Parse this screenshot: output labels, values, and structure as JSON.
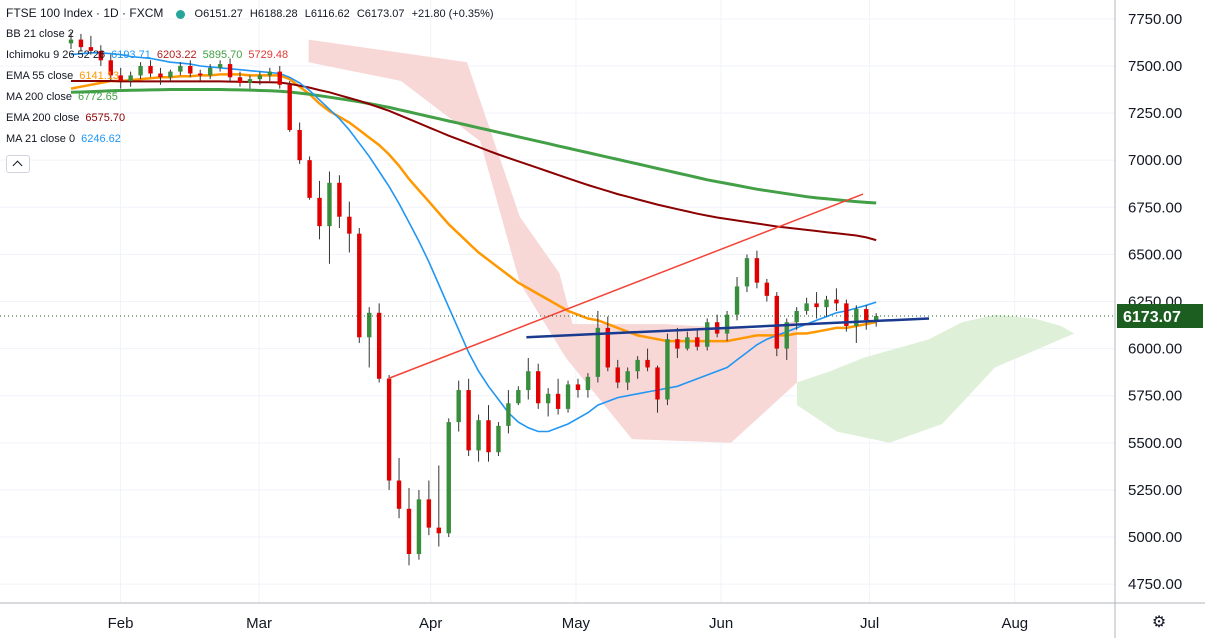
{
  "header": {
    "title": "FTSE 100 Index · 1D · FXCM",
    "ohlc": {
      "open_label": "O",
      "open": "6151.27",
      "high_label": "H",
      "high": "6188.28",
      "low_label": "L",
      "low": "6116.62",
      "close_label": "C",
      "close": "6173.07",
      "change": "+21.80 (+0.35%)"
    }
  },
  "indicators": [
    {
      "name": "BB 21 close 2",
      "values": [],
      "colors": []
    },
    {
      "name": "Ichimoku 9 26 52 26",
      "values": [
        "6193.71",
        "6203.22",
        "5895.70",
        "5729.48"
      ],
      "colors": [
        "#2196f3",
        "#b71c1c",
        "#43a047",
        "#e53935"
      ]
    },
    {
      "name": "EMA 55 close",
      "values": [
        "6141.13"
      ],
      "colors": [
        "#ff9800"
      ]
    },
    {
      "name": "MA 200 close",
      "values": [
        "6772.65"
      ],
      "colors": [
        "#43a047"
      ]
    },
    {
      "name": "EMA 200 close",
      "values": [
        "6575.70"
      ],
      "colors": [
        "#8b0000"
      ]
    },
    {
      "name": "MA 21 close 0",
      "values": [
        "6246.62"
      ],
      "colors": [
        "#2196f3"
      ]
    }
  ],
  "colors": {
    "up": "#388e3c",
    "down": "#e00000",
    "ema55": "#ff9800",
    "ma200": "#43a047",
    "ema200": "#8b0000",
    "ma21": "#2196f3",
    "bb": "#90caf9",
    "kumo_bear": "#f8d7d7",
    "kumo_bull": "#dff0d8",
    "trend_support": "#1a3a8f",
    "trend_channel": "#f44336",
    "price_label_bg": "#1b5e20"
  },
  "chart_data": {
    "type": "candlestick",
    "title": "FTSE 100 Index · 1D · FXCM",
    "ylim": [
      4650,
      7850
    ],
    "y_ticks": [
      "7750.00",
      "7500.00",
      "7250.00",
      "7000.00",
      "6750.00",
      "6500.00",
      "6250.00",
      "6000.00",
      "5750.00",
      "5500.00",
      "5250.00",
      "5000.00",
      "4750.00"
    ],
    "x_ticks": [
      "Feb",
      "Mar",
      "Apr",
      "May",
      "Jun",
      "Jul",
      "Aug"
    ],
    "last_price": "6173.07",
    "candles": [
      [
        7620,
        7680,
        7590,
        7640
      ],
      [
        7640,
        7670,
        7580,
        7600
      ],
      [
        7600,
        7660,
        7560,
        7580
      ],
      [
        7580,
        7610,
        7500,
        7530
      ],
      [
        7530,
        7560,
        7420,
        7450
      ],
      [
        7450,
        7490,
        7380,
        7420
      ],
      [
        7420,
        7470,
        7390,
        7450
      ],
      [
        7450,
        7520,
        7430,
        7500
      ],
      [
        7500,
        7530,
        7440,
        7460
      ],
      [
        7460,
        7490,
        7400,
        7440
      ],
      [
        7440,
        7480,
        7420,
        7470
      ],
      [
        7470,
        7520,
        7450,
        7500
      ],
      [
        7500,
        7530,
        7440,
        7460
      ],
      [
        7460,
        7480,
        7420,
        7450
      ],
      [
        7450,
        7510,
        7430,
        7490
      ],
      [
        7490,
        7530,
        7470,
        7510
      ],
      [
        7510,
        7540,
        7420,
        7440
      ],
      [
        7440,
        7470,
        7390,
        7410
      ],
      [
        7410,
        7450,
        7380,
        7430
      ],
      [
        7430,
        7470,
        7400,
        7450
      ],
      [
        7450,
        7490,
        7420,
        7470
      ],
      [
        7470,
        7500,
        7380,
        7400
      ],
      [
        7400,
        7420,
        7150,
        7160
      ],
      [
        7160,
        7200,
        6980,
        7000
      ],
      [
        7000,
        7020,
        6790,
        6800
      ],
      [
        6800,
        6890,
        6580,
        6650
      ],
      [
        6650,
        6940,
        6450,
        6880
      ],
      [
        6880,
        6920,
        6640,
        6700
      ],
      [
        6700,
        6780,
        6510,
        6610
      ],
      [
        6610,
        6640,
        6030,
        6060
      ],
      [
        6060,
        6220,
        5900,
        6190
      ],
      [
        6190,
        6240,
        5820,
        5840
      ],
      [
        5840,
        5860,
        5250,
        5300
      ],
      [
        5300,
        5420,
        5100,
        5150
      ],
      [
        5150,
        5260,
        4850,
        4910
      ],
      [
        4910,
        5250,
        4880,
        5200
      ],
      [
        5200,
        5300,
        5010,
        5050
      ],
      [
        5050,
        5380,
        4950,
        5020
      ],
      [
        5020,
        5630,
        5000,
        5610
      ],
      [
        5610,
        5830,
        5560,
        5780
      ],
      [
        5780,
        5840,
        5430,
        5460
      ],
      [
        5460,
        5650,
        5400,
        5620
      ],
      [
        5620,
        5700,
        5400,
        5450
      ],
      [
        5450,
        5610,
        5430,
        5590
      ],
      [
        5590,
        5780,
        5550,
        5710
      ],
      [
        5710,
        5800,
        5700,
        5780
      ],
      [
        5780,
        5950,
        5730,
        5880
      ],
      [
        5880,
        5920,
        5680,
        5710
      ],
      [
        5710,
        5790,
        5640,
        5760
      ],
      [
        5760,
        5840,
        5650,
        5680
      ],
      [
        5680,
        5830,
        5660,
        5810
      ],
      [
        5810,
        5840,
        5740,
        5780
      ],
      [
        5780,
        5870,
        5740,
        5850
      ],
      [
        5850,
        6200,
        5820,
        6110
      ],
      [
        6110,
        6170,
        5880,
        5900
      ],
      [
        5900,
        5940,
        5790,
        5820
      ],
      [
        5820,
        5900,
        5780,
        5880
      ],
      [
        5880,
        5960,
        5840,
        5940
      ],
      [
        5940,
        6000,
        5880,
        5900
      ],
      [
        5900,
        5910,
        5660,
        5730
      ],
      [
        5730,
        6080,
        5700,
        6050
      ],
      [
        6050,
        6110,
        5950,
        6000
      ],
      [
        6000,
        6090,
        5990,
        6060
      ],
      [
        6060,
        6100,
        5990,
        6010
      ],
      [
        6010,
        6160,
        5990,
        6140
      ],
      [
        6140,
        6180,
        6060,
        6080
      ],
      [
        6080,
        6200,
        6040,
        6180
      ],
      [
        6180,
        6380,
        6150,
        6330
      ],
      [
        6330,
        6500,
        6300,
        6480
      ],
      [
        6480,
        6520,
        6320,
        6350
      ],
      [
        6350,
        6370,
        6250,
        6280
      ],
      [
        6280,
        6300,
        5960,
        6000
      ],
      [
        6000,
        6160,
        5940,
        6140
      ],
      [
        6140,
        6220,
        6100,
        6200
      ],
      [
        6200,
        6270,
        6180,
        6240
      ],
      [
        6240,
        6300,
        6160,
        6220
      ],
      [
        6220,
        6280,
        6170,
        6260
      ],
      [
        6260,
        6320,
        6200,
        6240
      ],
      [
        6240,
        6260,
        6090,
        6120
      ],
      [
        6120,
        6230,
        6030,
        6210
      ],
      [
        6210,
        6230,
        6100,
        6151.27
      ],
      [
        6151.27,
        6188.28,
        6116.62,
        6173.07
      ]
    ],
    "series": [
      {
        "name": "EMA 55 close",
        "values": [
          7380,
          7390,
          7400,
          7410,
          7420,
          7420,
          7425,
          7430,
          7435,
          7440,
          7440,
          7445,
          7445,
          7450,
          7450,
          7455,
          7455,
          7455,
          7450,
          7450,
          7450,
          7450,
          7430,
          7390,
          7350,
          7300,
          7260,
          7230,
          7200,
          7160,
          7120,
          7080,
          7030,
          6970,
          6900,
          6840,
          6780,
          6720,
          6660,
          6610,
          6560,
          6510,
          6470,
          6430,
          6390,
          6350,
          6320,
          6290,
          6260,
          6230,
          6200,
          6180,
          6160,
          6150,
          6130,
          6110,
          6090,
          6070,
          6060,
          6050,
          6040,
          6040,
          6040,
          6040,
          6040,
          6040,
          6040,
          6050,
          6060,
          6070,
          6070,
          6070,
          6070,
          6080,
          6080,
          6090,
          6100,
          6110,
          6110,
          6120,
          6130,
          6141.13
        ]
      },
      {
        "name": "MA 200 close",
        "values": [
          7360,
          7362,
          7364,
          7366,
          7368,
          7370,
          7371,
          7372,
          7373,
          7374,
          7375,
          7375,
          7375,
          7375,
          7375,
          7375,
          7374,
          7373,
          7372,
          7370,
          7368,
          7366,
          7362,
          7356,
          7350,
          7342,
          7334,
          7326,
          7318,
          7310,
          7300,
          7290,
          7280,
          7268,
          7256,
          7244,
          7232,
          7220,
          7208,
          7196,
          7184,
          7172,
          7160,
          7148,
          7136,
          7124,
          7112,
          7100,
          7088,
          7076,
          7064,
          7052,
          7040,
          7028,
          7016,
          7004,
          6992,
          6980,
          6968,
          6956,
          6944,
          6932,
          6920,
          6908,
          6896,
          6886,
          6876,
          6866,
          6856,
          6846,
          6838,
          6830,
          6822,
          6814,
          6806,
          6800,
          6795,
          6790,
          6785,
          6780,
          6776,
          6772.65
        ]
      },
      {
        "name": "EMA 200 close",
        "values": [
          7420,
          7420,
          7420,
          7420,
          7420,
          7418,
          7418,
          7418,
          7418,
          7418,
          7418,
          7418,
          7418,
          7418,
          7418,
          7418,
          7417,
          7416,
          7415,
          7414,
          7413,
          7412,
          7405,
          7395,
          7385,
          7372,
          7360,
          7345,
          7330,
          7315,
          7298,
          7280,
          7262,
          7240,
          7218,
          7196,
          7174,
          7152,
          7130,
          7110,
          7090,
          7070,
          7050,
          7030,
          7012,
          6994,
          6976,
          6958,
          6940,
          6922,
          6904,
          6886,
          6868,
          6852,
          6836,
          6820,
          6806,
          6792,
          6778,
          6764,
          6752,
          6740,
          6728,
          6716,
          6706,
          6696,
          6688,
          6680,
          6672,
          6664,
          6656,
          6648,
          6642,
          6636,
          6630,
          6624,
          6618,
          6612,
          6606,
          6600,
          6590,
          6575.7
        ]
      },
      {
        "name": "MA 21 close 0",
        "values": [
          7560,
          7565,
          7570,
          7570,
          7565,
          7560,
          7550,
          7545,
          7540,
          7530,
          7520,
          7515,
          7510,
          7500,
          7495,
          7490,
          7485,
          7480,
          7475,
          7470,
          7465,
          7460,
          7440,
          7410,
          7370,
          7320,
          7270,
          7220,
          7160,
          7090,
          7020,
          6940,
          6860,
          6770,
          6670,
          6570,
          6460,
          6340,
          6220,
          6100,
          5980,
          5880,
          5800,
          5730,
          5660,
          5610,
          5580,
          5560,
          5560,
          5580,
          5600,
          5630,
          5660,
          5700,
          5720,
          5740,
          5750,
          5760,
          5770,
          5780,
          5790,
          5800,
          5820,
          5840,
          5860,
          5880,
          5900,
          5940,
          5980,
          6020,
          6050,
          6070,
          6090,
          6110,
          6130,
          6150,
          6170,
          6190,
          6200,
          6215,
          6230,
          6246.62
        ]
      }
    ]
  }
}
